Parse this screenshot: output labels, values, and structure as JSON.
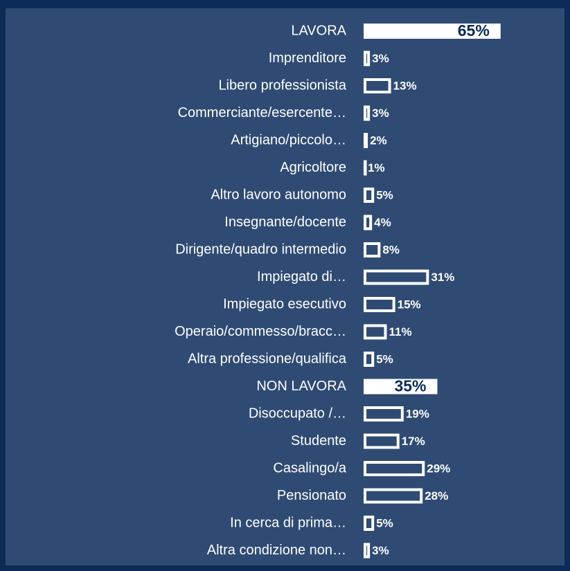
{
  "chart_data": {
    "type": "hbar",
    "categories": [
      "LAVORA",
      "Imprenditore",
      "Libero professionista",
      "Commerciante/esercente…",
      "Artigiano/piccolo…",
      "Agricoltore",
      "Altro lavoro autonomo",
      "Insegnante/docente",
      "Dirigente/quadro intermedio",
      "Impiegato di…",
      "Impiegato esecutivo",
      "Operaio/commesso/bracc…",
      "Altra professione/qualifica",
      "NON LAVORA",
      "Disoccupato /…",
      "Studente",
      "Casalingo/a",
      "Pensionato",
      "In cerca di prima…",
      "Altra condizione non…"
    ],
    "values": [
      65,
      3,
      13,
      3,
      2,
      1,
      5,
      4,
      8,
      31,
      15,
      11,
      5,
      35,
      19,
      17,
      29,
      28,
      5,
      3
    ],
    "value_labels": [
      "65%",
      "3%",
      "13%",
      "3%",
      "2%",
      "1%",
      "5%",
      "4%",
      "8%",
      "31%",
      "15%",
      "11%",
      "5%",
      "35%",
      "19%",
      "17%",
      "29%",
      "28%",
      "5%",
      "3%"
    ],
    "bar_styles": [
      "filled",
      "outline",
      "outline",
      "outline",
      "outline",
      "outline",
      "outline",
      "outline",
      "outline",
      "outline",
      "outline",
      "outline",
      "outline",
      "filled",
      "outline",
      "outline",
      "outline",
      "outline",
      "outline",
      "outline"
    ],
    "color": "#ffffff",
    "xlim": [
      0,
      70
    ]
  }
}
